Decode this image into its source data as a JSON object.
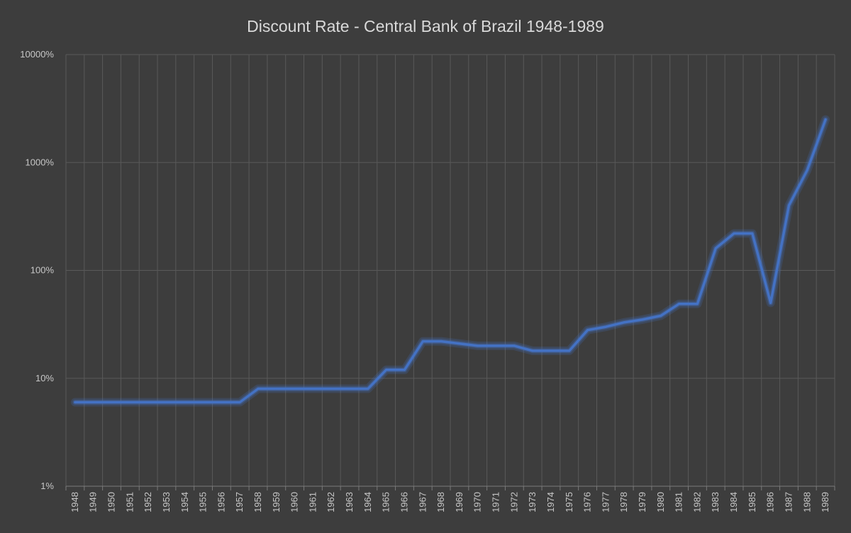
{
  "chart_data": {
    "type": "line",
    "title": "Discount Rate - Central Bank of Brazil 1948-1989",
    "xlabel": "",
    "ylabel": "",
    "y_scale": "log",
    "ylim": [
      1,
      10000
    ],
    "y_ticks": [
      "1%",
      "10%",
      "100%",
      "1000%",
      "10000%"
    ],
    "y_tick_values": [
      1,
      10,
      100,
      1000,
      10000
    ],
    "grid": true,
    "legend": "none",
    "line_color": "#4472c4",
    "categories": [
      "1948",
      "1949",
      "1950",
      "1951",
      "1952",
      "1953",
      "1954",
      "1955",
      "1956",
      "1957",
      "1958",
      "1959",
      "1960",
      "1961",
      "1962",
      "1963",
      "1964",
      "1965",
      "1966",
      "1967",
      "1968",
      "1969",
      "1970",
      "1971",
      "1972",
      "1973",
      "1974",
      "1975",
      "1976",
      "1977",
      "1978",
      "1979",
      "1980",
      "1981",
      "1982",
      "1983",
      "1984",
      "1985",
      "1986",
      "1987",
      "1988",
      "1989"
    ],
    "series": [
      {
        "values": [
          6,
          6,
          6,
          6,
          6,
          6,
          6,
          6,
          6,
          6,
          8,
          8,
          8,
          8,
          8,
          8,
          8,
          12,
          12,
          22,
          22,
          21,
          20,
          20,
          20,
          18,
          18,
          18,
          28,
          30,
          33,
          35,
          38,
          49,
          49,
          160,
          220,
          220,
          50,
          400,
          850,
          2500
        ]
      }
    ]
  }
}
